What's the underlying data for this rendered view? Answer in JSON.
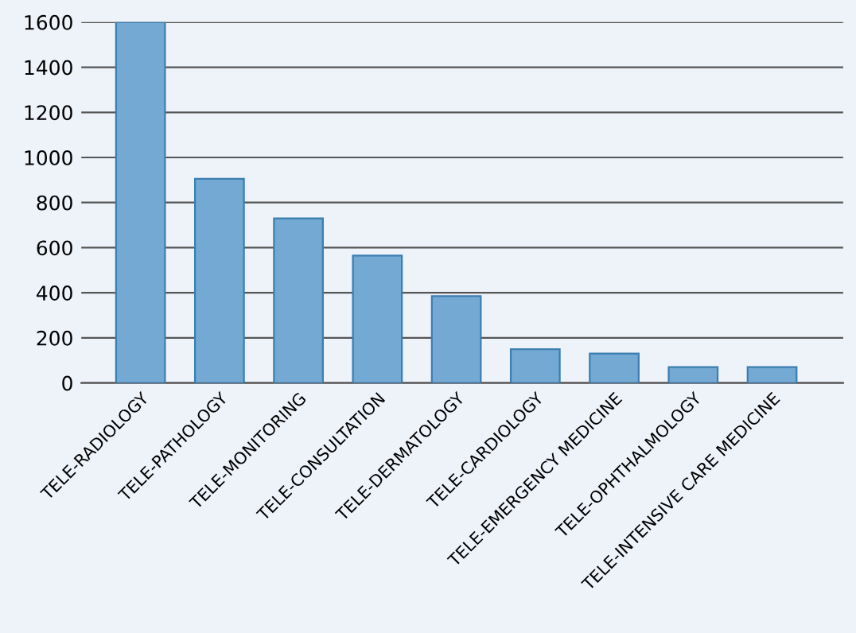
{
  "chart_data": {
    "type": "bar",
    "categories": [
      "TELE-RADIOLOGY",
      "TELE-PATHOLOGY",
      "TELE-MONITORING",
      "TELE-CONSULTATION",
      "TELE-DERMATOLOGY",
      "TELE-CARDIOLOGY",
      "TELE-EMERGENCY MEDICINE",
      "TELE-OPHTHALMOLOGY",
      "TELE-INTENSIVE CARE MEDICINE"
    ],
    "values": [
      1600,
      905,
      730,
      565,
      385,
      150,
      130,
      70,
      70
    ],
    "color": "#74a9d4",
    "ylim": [
      0,
      1600
    ],
    "yticks": [
      0,
      200,
      400,
      600,
      800,
      1000,
      1200,
      1400,
      1600
    ],
    "grid": "y"
  }
}
